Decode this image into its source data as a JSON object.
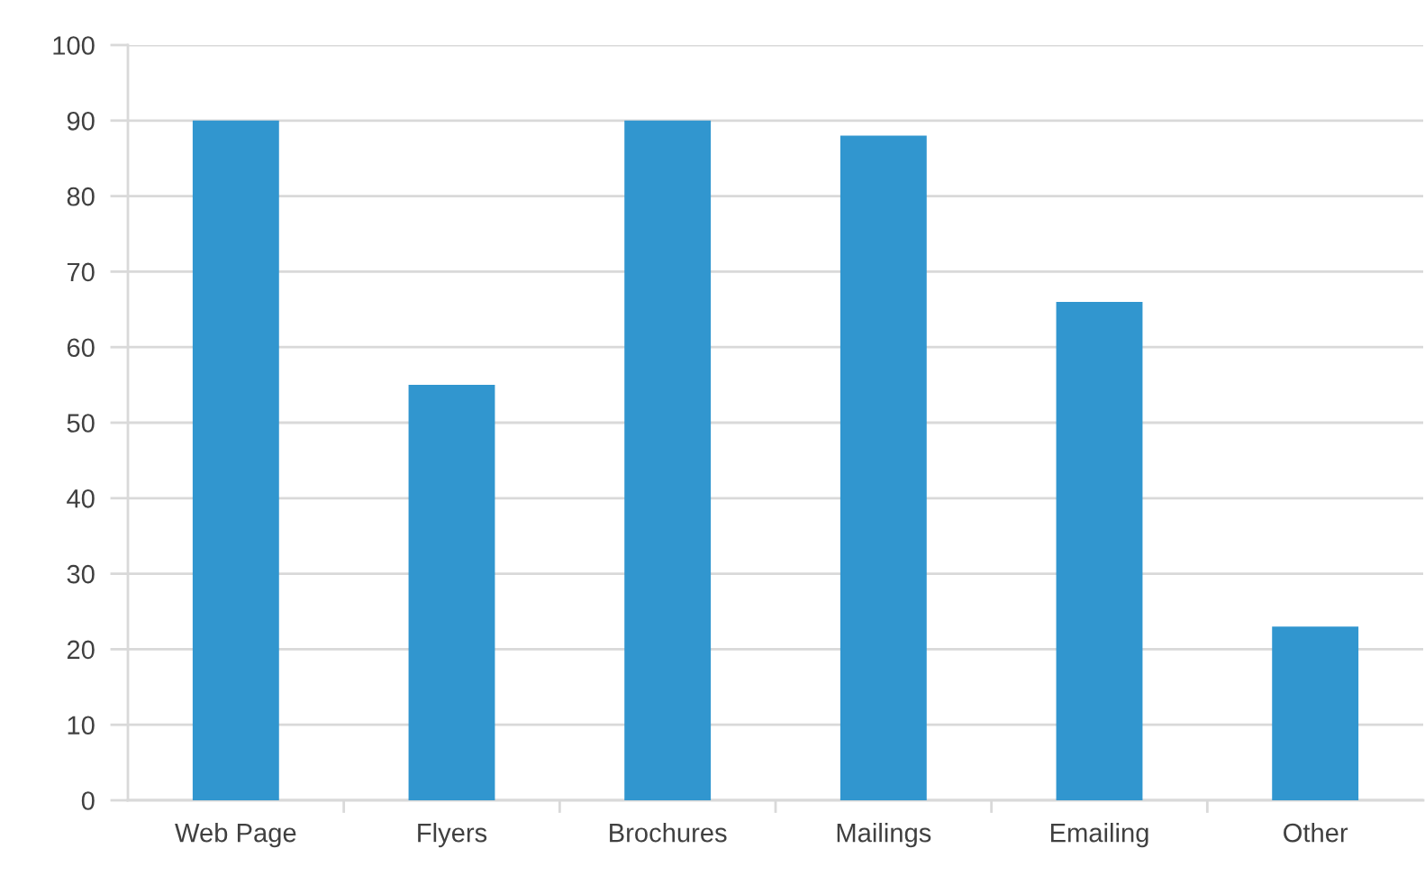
{
  "chart_data": {
    "type": "bar",
    "categories": [
      "Web Page",
      "Flyers",
      "Brochures",
      "Mailings",
      "Emailing",
      "Other"
    ],
    "values": [
      90,
      55,
      90,
      88,
      66,
      23
    ],
    "color": "#3196cf",
    "ylim": [
      0,
      100
    ],
    "yticks": [
      0,
      10,
      20,
      30,
      40,
      50,
      60,
      70,
      80,
      90,
      100
    ],
    "grid": "y"
  }
}
